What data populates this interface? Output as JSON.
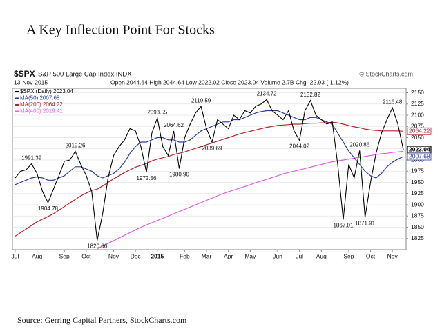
{
  "chart_data": {
    "type": "line",
    "title": "A Key Inflection Point For Stocks",
    "chart_title": "$SPX",
    "chart_subtitle": "S&P 500 Large Cap Index INDX",
    "credit": "© StockCharts.com",
    "date": "13-Nov-2015",
    "quote": "Open 2044.64 High 2044.64 Low 2022.02 Close 2023.04 Volume 2.7B Chg -22.93 (-1.12%)",
    "source": "Source: Gerring Capital Partners, StockCharts.com",
    "categories": [
      "Jul",
      null,
      null,
      null,
      "Aug",
      null,
      null,
      null,
      null,
      "Sep",
      null,
      null,
      null,
      "Oct",
      null,
      null,
      null,
      null,
      "Nov",
      null,
      null,
      null,
      "Dec",
      null,
      null,
      null,
      "2015",
      null,
      null,
      null,
      null,
      "Feb",
      null,
      null,
      null,
      "Mar",
      null,
      null,
      null,
      "Apr",
      null,
      null,
      null,
      "May",
      null,
      null,
      null,
      null,
      "Jun",
      null,
      null,
      null,
      "Jul",
      null,
      null,
      null,
      "Aug",
      null,
      null,
      null,
      null,
      "Sep",
      null,
      null,
      null,
      "Oct",
      null,
      null,
      null,
      "Nov",
      null,
      null
    ],
    "ylim": [
      1800,
      2160
    ],
    "yticks": [
      1825,
      1850,
      1875,
      1900,
      1925,
      1950,
      1975,
      2000,
      2025,
      2050,
      2075,
      2100,
      2125,
      2150
    ],
    "grid": true,
    "legend": "upper left",
    "series": [
      {
        "name": "$SPX (Daily) 2023.04",
        "color": "#000000",
        "end_label": true,
        "values": [
          1960,
          1975,
          1978,
          1991.39,
          1970,
          1930,
          1904.78,
          1935,
          1965,
          1997,
          2000,
          2019.26,
          1990,
          1965,
          1930,
          1820.66,
          1880,
          1960,
          2010,
          2030,
          2045,
          2070,
          2065,
          2030,
          1972.56,
          2060,
          2093.55,
          2030,
          2010,
          2064.62,
          1980.9,
          2050,
          2080,
          2105,
          2119.59,
          2070,
          2039.69,
          2090,
          2080,
          2070,
          2100,
          2090,
          2110,
          2105,
          2120,
          2125,
          2134.72,
          2110,
          2100,
          2090,
          2110,
          2065,
          2044.02,
          2110,
          2132.82,
          2100,
          2090,
          2080,
          2085,
          1990,
          1867.01,
          1990,
          1960,
          2020.86,
          1871.91,
          1950,
          2015,
          2060,
          2090,
          2116.48,
          2080,
          2023.04
        ],
        "value_labels": [
          null,
          null,
          null,
          "1991.39",
          null,
          null,
          "1904.78",
          null,
          null,
          null,
          null,
          "2019.26",
          null,
          null,
          null,
          "1820.66",
          null,
          null,
          null,
          null,
          null,
          null,
          null,
          null,
          "1972.56",
          null,
          "2093.55",
          null,
          null,
          "2064.62",
          "1980.90",
          null,
          null,
          null,
          "2119.59",
          null,
          "2039.69",
          null,
          null,
          null,
          null,
          null,
          null,
          null,
          null,
          null,
          "2134.72",
          null,
          null,
          null,
          null,
          null,
          "2044.02",
          null,
          "2132.82",
          null,
          null,
          null,
          null,
          null,
          "1867.01",
          null,
          null,
          "2020.86",
          "1871.91",
          null,
          null,
          null,
          null,
          "2116.48",
          null,
          null
        ]
      },
      {
        "name": "MA(50) 2007.68",
        "color": "#2a3b9e",
        "end_label": true,
        "values": [
          1945,
          1950,
          1955,
          1960,
          1962,
          1960,
          1955,
          1955,
          1960,
          1965,
          1975,
          1985,
          1985,
          1980,
          1975,
          1965,
          1960,
          1965,
          1970,
          1980,
          1995,
          2015,
          2030,
          2040,
          2040,
          2045,
          2050,
          2050,
          2045,
          2045,
          2040,
          2040,
          2045,
          2055,
          2065,
          2070,
          2075,
          2080,
          2085,
          2085,
          2090,
          2090,
          2095,
          2100,
          2105,
          2108,
          2110,
          2110,
          2110,
          2105,
          2100,
          2095,
          2090,
          2090,
          2095,
          2095,
          2090,
          2085,
          2080,
          2060,
          2040,
          2020,
          2005,
          1990,
          1975,
          1965,
          1960,
          1970,
          1985,
          1995,
          2002,
          2007.68
        ]
      },
      {
        "name": "MA(200) 2064.22",
        "color": "#b8242a",
        "end_label": true,
        "values": [
          1830,
          1838,
          1846,
          1854,
          1862,
          1868,
          1874,
          1880,
          1888,
          1896,
          1904,
          1912,
          1920,
          1926,
          1932,
          1935,
          1942,
          1950,
          1958,
          1965,
          1972,
          1978,
          1984,
          1988,
          1992,
          1998,
          2002,
          2005,
          2008,
          2012,
          2015,
          2018,
          2022,
          2026,
          2030,
          2034,
          2038,
          2042,
          2046,
          2050,
          2054,
          2058,
          2061,
          2064,
          2067,
          2070,
          2073,
          2075,
          2077,
          2078,
          2079,
          2080,
          2080,
          2081,
          2082,
          2082,
          2083,
          2083,
          2084,
          2083,
          2080,
          2077,
          2074,
          2072,
          2069,
          2067,
          2066,
          2065,
          2065,
          2065,
          2065,
          2064.22
        ]
      },
      {
        "name": "MA(400) 2019.41",
        "color": "#e05ce0",
        "end_label": false,
        "values": [
          null,
          null,
          null,
          null,
          null,
          null,
          null,
          null,
          null,
          null,
          null,
          null,
          null,
          null,
          null,
          1802,
          1808,
          1814,
          1820,
          1826,
          1832,
          1838,
          1844,
          1850,
          1855,
          1860,
          1865,
          1870,
          1875,
          1880,
          1885,
          1890,
          1895,
          1900,
          1905,
          1910,
          1915,
          1920,
          1925,
          1929,
          1933,
          1937,
          1941,
          1945,
          1949,
          1953,
          1957,
          1961,
          1965,
          1969,
          1972,
          1975,
          1978,
          1981,
          1984,
          1987,
          1990,
          1993,
          1996,
          1998,
          2000,
          2002,
          2004,
          2006,
          2008,
          2010,
          2012,
          2014,
          2015,
          2017,
          2018,
          2019.41
        ]
      }
    ]
  }
}
